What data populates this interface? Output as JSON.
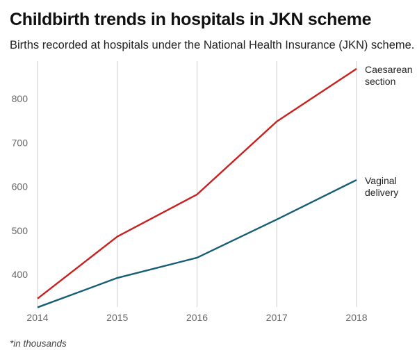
{
  "header": {
    "title": "Childbirth trends in hospitals in JKN scheme",
    "subtitle": "Births recorded at hospitals under the National Health Insurance (JKN) scheme."
  },
  "footer": {
    "note": "*in thousands"
  },
  "chart_data": {
    "type": "line",
    "title": "Childbirth trends in hospitals in JKN scheme",
    "subtitle": "Births recorded at hospitals under the National Health Insurance (JKN) scheme.",
    "xlabel": "",
    "ylabel": "",
    "unit_note": "*in thousands",
    "x": [
      "2014",
      "2015",
      "2016",
      "2017",
      "2018"
    ],
    "y_ticks": [
      "400",
      "500",
      "600",
      "700",
      "800"
    ],
    "ylim": [
      325,
      900
    ],
    "grid": "vertical",
    "legend": "direct labels at line ends (right)",
    "series": [
      {
        "name": "Caesarean section",
        "label_lines": [
          "Caesarean",
          "section"
        ],
        "color": "#c8201e",
        "values": [
          345,
          486,
          582,
          748,
          868
        ]
      },
      {
        "name": "Vaginal delivery",
        "label_lines": [
          "Vaginal",
          "delivery"
        ],
        "color": "#155e75",
        "values": [
          325,
          392,
          438,
          525,
          615
        ]
      }
    ]
  }
}
